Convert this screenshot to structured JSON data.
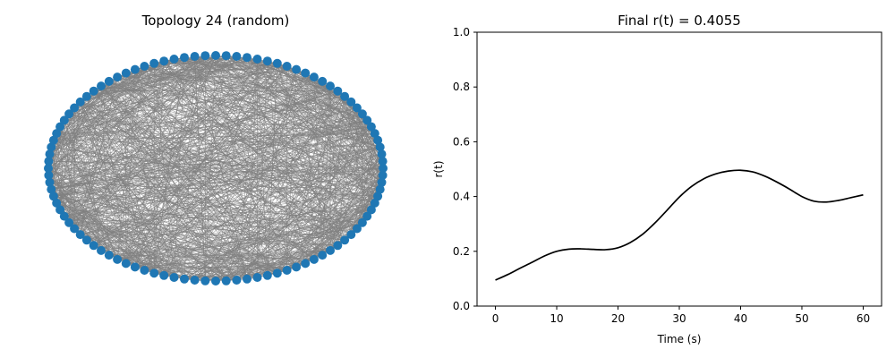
{
  "chart_data": [
    {
      "type": "network",
      "title": "Topology 24 (random)",
      "node_count": 100,
      "node_color": "#1f77b4",
      "edge_color": "#808080",
      "axes_visible": false
    },
    {
      "type": "line",
      "title": "Final r(t) = 0.4055",
      "xlabel": "Time (s)",
      "ylabel": "r(t)",
      "xlim": [
        -3,
        63
      ],
      "ylim": [
        0.0,
        1.0
      ],
      "xticks": [
        "0",
        "10",
        "20",
        "30",
        "40",
        "50",
        "60"
      ],
      "yticks": [
        "0.0",
        "0.2",
        "0.4",
        "0.6",
        "0.8",
        "1.0"
      ],
      "line_color": "#000000",
      "grid": false,
      "series": [
        {
          "x": [
            0,
            2,
            4,
            6,
            8,
            10,
            12,
            14,
            16,
            18,
            20,
            22,
            24,
            26,
            28,
            30,
            32,
            34,
            36,
            38,
            40,
            42,
            44,
            46,
            48,
            50,
            52,
            54,
            56,
            58,
            60
          ],
          "values": [
            0.095,
            0.115,
            0.138,
            0.16,
            0.183,
            0.2,
            0.208,
            0.209,
            0.207,
            0.206,
            0.213,
            0.232,
            0.262,
            0.303,
            0.35,
            0.398,
            0.437,
            0.465,
            0.483,
            0.493,
            0.496,
            0.49,
            0.474,
            0.452,
            0.427,
            0.4,
            0.383,
            0.38,
            0.386,
            0.396,
            0.406
          ]
        }
      ]
    }
  ]
}
